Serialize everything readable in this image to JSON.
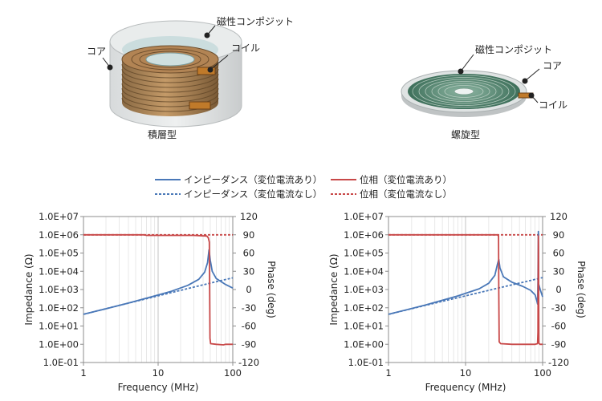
{
  "illustrations": {
    "stacked": {
      "caption": "積層型",
      "labels": {
        "composite": "磁性コンポジット",
        "coil": "コイル",
        "core": "コア"
      }
    },
    "spiral": {
      "caption": "螺旋型",
      "labels": {
        "composite": "磁性コンポジット",
        "core": "コア",
        "coil": "コイル"
      }
    }
  },
  "legend": {
    "impedance_with": "インピーダンス（変位電流あり）",
    "impedance_without": "インピーダンス（変位電流なし）",
    "phase_with": "位相（変位電流あり）",
    "phase_without": "位相（変位電流なし）"
  },
  "colors": {
    "impedance": "#4a78b8",
    "phase": "#c84848",
    "grid": "#d9d9d9",
    "axis": "#8c8c8c"
  },
  "chart_data": [
    {
      "type": "line",
      "xscale": "log",
      "xlabel": "Frequency (MHz)",
      "ylabel_left": "Impedance (Ω)",
      "ylabel_right": "Phase (deg)",
      "xlim": [
        1,
        100
      ],
      "x_ticks": [
        "1",
        "10",
        "100"
      ],
      "ylim_left": [
        0.1,
        10000000.0
      ],
      "y_ticks_left": [
        "1.0E+07",
        "1.0E+06",
        "1.0E+05",
        "1.0E+04",
        "1.0E+03",
        "1.0E+02",
        "1.0E+01",
        "1.0E+00",
        "1.0E-01"
      ],
      "ylim_right": [
        -120,
        120
      ],
      "y_ticks_right": [
        "120",
        "90",
        "60",
        "30",
        "0",
        "-30",
        "-60",
        "-90",
        "-120"
      ],
      "grid": "vertical",
      "series": [
        {
          "name": "インピーダンス（変位電流あり）",
          "axis": "left",
          "style": "solid",
          "points": [
            [
              1,
              44
            ],
            [
              2,
              88
            ],
            [
              4,
              180
            ],
            [
              8,
              390
            ],
            [
              15,
              800
            ],
            [
              25,
              1700
            ],
            [
              35,
              3600
            ],
            [
              42,
              9000
            ],
            [
              46,
              30000
            ],
            [
              48,
              150000
            ],
            [
              50,
              40000
            ],
            [
              53,
              10000
            ],
            [
              60,
              4000
            ],
            [
              80,
              1900
            ],
            [
              100,
              1200
            ]
          ]
        },
        {
          "name": "インピーダンス（変位電流なし）",
          "axis": "left",
          "style": "dashed",
          "points": [
            [
              1,
              44
            ],
            [
              3,
              135
            ],
            [
              10,
              450
            ],
            [
              30,
              1350
            ],
            [
              60,
              2700
            ],
            [
              100,
              4400
            ]
          ]
        },
        {
          "name": "位相（変位電流あり）",
          "axis": "right",
          "style": "solid",
          "points": [
            [
              1,
              90
            ],
            [
              6.5,
              90
            ],
            [
              7,
              89
            ],
            [
              30,
              89
            ],
            [
              45,
              88
            ],
            [
              47,
              85
            ],
            [
              48.5,
              78
            ],
            [
              49,
              0
            ],
            [
              49.5,
              -80
            ],
            [
              50.5,
              -89
            ],
            [
              60,
              -90
            ],
            [
              75,
              -91
            ],
            [
              80,
              -90
            ],
            [
              100,
              -90
            ]
          ]
        },
        {
          "name": "位相（変位電流なし）",
          "axis": "right",
          "style": "dashed",
          "points": [
            [
              1,
              90
            ],
            [
              100,
              90
            ]
          ]
        }
      ]
    },
    {
      "type": "line",
      "xscale": "log",
      "xlabel": "Frequency (MHz)",
      "ylabel_left": "Impedance (Ω)",
      "ylabel_right": "Phase (deg)",
      "xlim": [
        1,
        100
      ],
      "x_ticks": [
        "1",
        "10",
        "100"
      ],
      "ylim_left": [
        0.1,
        10000000.0
      ],
      "y_ticks_left": [
        "1.0E+07",
        "1.0E+06",
        "1.0E+05",
        "1.0E+04",
        "1.0E+03",
        "1.0E+02",
        "1.0E+01",
        "1.0E+00",
        "1.0E-01"
      ],
      "ylim_right": [
        -120,
        120
      ],
      "y_ticks_right": [
        "120",
        "90",
        "60",
        "30",
        "0",
        "-30",
        "-60",
        "-90",
        "-120"
      ],
      "grid": "vertical",
      "series": [
        {
          "name": "インピーダンス（変位電流あり）",
          "axis": "left",
          "style": "solid",
          "points": [
            [
              1,
              44
            ],
            [
              3,
              140
            ],
            [
              8,
              450
            ],
            [
              15,
              1100
            ],
            [
              20,
              2200
            ],
            [
              24,
              6000
            ],
            [
              26,
              25000
            ],
            [
              27,
              45000
            ],
            [
              28,
              15000
            ],
            [
              31,
              5000
            ],
            [
              40,
              2500
            ],
            [
              55,
              1500
            ],
            [
              70,
              900
            ],
            [
              80,
              500
            ],
            [
              84,
              250
            ],
            [
              86,
              160
            ],
            [
              87,
              3000
            ],
            [
              88,
              1500000
            ],
            [
              89,
              2000
            ],
            [
              93,
              1000
            ],
            [
              100,
              400
            ]
          ]
        },
        {
          "name": "インピーダンス（変位電流なし）",
          "axis": "left",
          "style": "dashed",
          "points": [
            [
              1,
              44
            ],
            [
              3,
              135
            ],
            [
              10,
              450
            ],
            [
              30,
              1350
            ],
            [
              60,
              2700
            ],
            [
              100,
              4500
            ]
          ]
        },
        {
          "name": "位相（変位電流あり）",
          "axis": "right",
          "style": "solid",
          "points": [
            [
              1,
              90
            ],
            [
              26,
              90
            ],
            [
              26.8,
              88
            ],
            [
              27,
              0
            ],
            [
              27.3,
              -86
            ],
            [
              28.5,
              -89
            ],
            [
              40,
              -90
            ],
            [
              80,
              -90
            ],
            [
              86,
              -89
            ],
            [
              87,
              -70
            ],
            [
              87.5,
              0
            ],
            [
              88,
              88
            ],
            [
              88.5,
              70
            ],
            [
              89,
              0
            ],
            [
              89.5,
              -88
            ],
            [
              92,
              -90
            ],
            [
              100,
              -90
            ]
          ]
        },
        {
          "name": "位相（変位電流なし）",
          "axis": "right",
          "style": "dashed",
          "points": [
            [
              1,
              90
            ],
            [
              100,
              90
            ]
          ]
        }
      ]
    }
  ]
}
